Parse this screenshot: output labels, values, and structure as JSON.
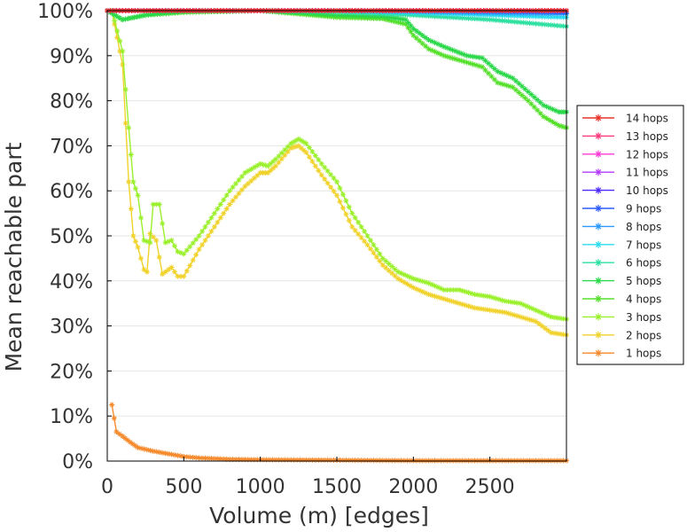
{
  "chart_data": {
    "type": "line",
    "title": "",
    "xlabel": "Volume (m) [edges]",
    "ylabel": "Mean reachable part",
    "xlim": [
      0,
      3000
    ],
    "ylim": [
      0,
      100
    ],
    "x_ticks": [
      "0",
      "500",
      "1000",
      "1500",
      "2000",
      "2500"
    ],
    "y_ticks": [
      "0%",
      "10%",
      "20%",
      "30%",
      "40%",
      "50%",
      "60%",
      "70%",
      "80%",
      "90%",
      "100%"
    ],
    "grid": true,
    "legend_position": "right",
    "series": [
      {
        "name": "14 hops",
        "color": "#e8322a",
        "points": [
          [
            0,
            100
          ],
          [
            3000,
            100
          ]
        ]
      },
      {
        "name": "13 hops",
        "color": "#ff3a7a",
        "points": [
          [
            0,
            100
          ],
          [
            3000,
            100
          ]
        ]
      },
      {
        "name": "12 hops",
        "color": "#ff3ad8",
        "points": [
          [
            0,
            100
          ],
          [
            3000,
            100
          ]
        ]
      },
      {
        "name": "11 hops",
        "color": "#b43aff",
        "points": [
          [
            0,
            100
          ],
          [
            3000,
            100
          ]
        ]
      },
      {
        "name": "10 hops",
        "color": "#4d2bff",
        "points": [
          [
            0,
            100
          ],
          [
            1500,
            100
          ],
          [
            2000,
            100
          ],
          [
            3000,
            100
          ]
        ]
      },
      {
        "name": "9 hops",
        "color": "#2b5bff",
        "points": [
          [
            0,
            100
          ],
          [
            1500,
            100
          ],
          [
            2000,
            100
          ],
          [
            2500,
            99.9
          ],
          [
            3000,
            99.6
          ]
        ]
      },
      {
        "name": "8 hops",
        "color": "#2b9aff",
        "points": [
          [
            0,
            100
          ],
          [
            1500,
            100
          ],
          [
            2000,
            99.8
          ],
          [
            2500,
            99.5
          ],
          [
            3000,
            99.3
          ]
        ]
      },
      {
        "name": "7 hops",
        "color": "#2bdcf0",
        "points": [
          [
            0,
            100
          ],
          [
            1500,
            100
          ],
          [
            2000,
            99.5
          ],
          [
            2500,
            99
          ],
          [
            3000,
            98.5
          ]
        ]
      },
      {
        "name": "6 hops",
        "color": "#2be0a0",
        "points": [
          [
            0,
            100
          ],
          [
            1000,
            100
          ],
          [
            1500,
            99.7
          ],
          [
            2000,
            99
          ],
          [
            2500,
            98
          ],
          [
            3000,
            96.5
          ]
        ]
      },
      {
        "name": "5 hops",
        "color": "#2bd84a",
        "points": [
          [
            0,
            100
          ],
          [
            100,
            98
          ],
          [
            250,
            99
          ],
          [
            500,
            99.8
          ],
          [
            1000,
            100
          ],
          [
            1500,
            99
          ],
          [
            1800,
            98.7
          ],
          [
            1950,
            98
          ],
          [
            2000,
            96
          ],
          [
            2100,
            93.5
          ],
          [
            2200,
            92
          ],
          [
            2350,
            90
          ],
          [
            2450,
            89.5
          ],
          [
            2550,
            86.5
          ],
          [
            2650,
            85
          ],
          [
            2750,
            82
          ],
          [
            2850,
            79
          ],
          [
            2950,
            77.5
          ],
          [
            3000,
            77.5
          ]
        ]
      },
      {
        "name": "4 hops",
        "color": "#55e02b",
        "points": [
          [
            0,
            100
          ],
          [
            100,
            98
          ],
          [
            250,
            99
          ],
          [
            500,
            99.6
          ],
          [
            1000,
            100
          ],
          [
            1500,
            98.5
          ],
          [
            1800,
            98.2
          ],
          [
            1950,
            97
          ],
          [
            2000,
            94.5
          ],
          [
            2100,
            91.5
          ],
          [
            2200,
            90
          ],
          [
            2350,
            88.5
          ],
          [
            2450,
            87.5
          ],
          [
            2550,
            84
          ],
          [
            2650,
            83
          ],
          [
            2750,
            80
          ],
          [
            2850,
            76.5
          ],
          [
            2950,
            74.5
          ],
          [
            3000,
            74
          ]
        ]
      },
      {
        "name": "3 hops",
        "color": "#9af02b",
        "points": [
          [
            30,
            100
          ],
          [
            100,
            91
          ],
          [
            140,
            74
          ],
          [
            170,
            62
          ],
          [
            200,
            59
          ],
          [
            240,
            49
          ],
          [
            280,
            48.5
          ],
          [
            300,
            57
          ],
          [
            340,
            57
          ],
          [
            380,
            48.5
          ],
          [
            420,
            49
          ],
          [
            460,
            46.5
          ],
          [
            500,
            46
          ],
          [
            600,
            50
          ],
          [
            700,
            55
          ],
          [
            800,
            60
          ],
          [
            900,
            64
          ],
          [
            1000,
            66
          ],
          [
            1050,
            65.5
          ],
          [
            1100,
            67
          ],
          [
            1200,
            70.5
          ],
          [
            1250,
            71.5
          ],
          [
            1300,
            70.5
          ],
          [
            1400,
            66
          ],
          [
            1500,
            62
          ],
          [
            1600,
            55
          ],
          [
            1700,
            50
          ],
          [
            1800,
            45
          ],
          [
            1900,
            42
          ],
          [
            2000,
            40.5
          ],
          [
            2100,
            39.5
          ],
          [
            2200,
            38
          ],
          [
            2300,
            38
          ],
          [
            2400,
            37
          ],
          [
            2500,
            36.5
          ],
          [
            2600,
            35.5
          ],
          [
            2700,
            35
          ],
          [
            2800,
            33.5
          ],
          [
            2900,
            32
          ],
          [
            3000,
            31.5
          ]
        ]
      },
      {
        "name": "2 hops",
        "color": "#f0d22b",
        "points": [
          [
            30,
            100
          ],
          [
            100,
            88
          ],
          [
            140,
            62
          ],
          [
            170,
            50
          ],
          [
            200,
            47.5
          ],
          [
            240,
            42.5
          ],
          [
            260,
            42
          ],
          [
            280,
            50.5
          ],
          [
            320,
            49
          ],
          [
            360,
            41.5
          ],
          [
            420,
            43
          ],
          [
            460,
            41
          ],
          [
            500,
            41
          ],
          [
            600,
            47
          ],
          [
            700,
            52
          ],
          [
            800,
            57
          ],
          [
            900,
            61
          ],
          [
            1000,
            64
          ],
          [
            1050,
            64
          ],
          [
            1100,
            65.5
          ],
          [
            1200,
            69.5
          ],
          [
            1250,
            70
          ],
          [
            1300,
            68.5
          ],
          [
            1400,
            63.5
          ],
          [
            1500,
            59
          ],
          [
            1600,
            52
          ],
          [
            1700,
            48
          ],
          [
            1800,
            43.5
          ],
          [
            1900,
            40.5
          ],
          [
            2000,
            38.5
          ],
          [
            2100,
            37
          ],
          [
            2200,
            36
          ],
          [
            2300,
            35
          ],
          [
            2400,
            34
          ],
          [
            2500,
            33.5
          ],
          [
            2600,
            33
          ],
          [
            2700,
            32
          ],
          [
            2800,
            31
          ],
          [
            2900,
            28.5
          ],
          [
            3000,
            28
          ]
        ]
      },
      {
        "name": "1 hops",
        "color": "#f5892b",
        "points": [
          [
            30,
            12.5
          ],
          [
            60,
            6.5
          ],
          [
            100,
            5.5
          ],
          [
            150,
            4.2
          ],
          [
            200,
            3
          ],
          [
            300,
            2.2
          ],
          [
            400,
            1.6
          ],
          [
            500,
            1
          ],
          [
            600,
            0.7
          ],
          [
            800,
            0.4
          ],
          [
            1000,
            0.3
          ],
          [
            1500,
            0.2
          ],
          [
            2000,
            0.1
          ],
          [
            3000,
            0.1
          ]
        ]
      }
    ]
  }
}
